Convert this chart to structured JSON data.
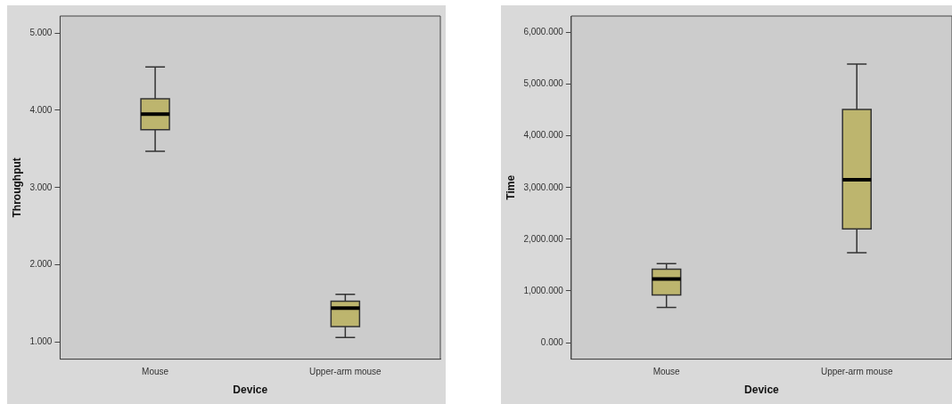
{
  "chart_data": [
    {
      "type": "box",
      "xlabel": "Device",
      "ylabel": "Throughput",
      "categories": [
        "Mouse",
        "Upper-arm mouse"
      ],
      "color": "#bdb56e",
      "boxes": [
        {
          "low": 3.47,
          "q1": 3.75,
          "median": 3.95,
          "q3": 4.15,
          "high": 4.56
        },
        {
          "low": 1.06,
          "q1": 1.2,
          "median": 1.44,
          "q3": 1.53,
          "high": 1.62
        }
      ],
      "ylim": [
        0.78,
        5.22
      ],
      "yticks": [
        {
          "value": 1,
          "label": "1.000"
        },
        {
          "value": 2,
          "label": "2.000"
        },
        {
          "value": 3,
          "label": "3.000"
        },
        {
          "value": 4,
          "label": "4.000"
        },
        {
          "value": 5,
          "label": "5.000"
        }
      ],
      "grid": false
    },
    {
      "type": "box",
      "xlabel": "Device",
      "ylabel": "Time",
      "categories": [
        "Mouse",
        "Upper-arm mouse"
      ],
      "color": "#bdb56e",
      "boxes": [
        {
          "low": 680,
          "q1": 920,
          "median": 1230,
          "q3": 1420,
          "high": 1530
        },
        {
          "low": 1740,
          "q1": 2200,
          "median": 3150,
          "q3": 4510,
          "high": 5390
        }
      ],
      "ylim": [
        -320,
        6320
      ],
      "yticks": [
        {
          "value": 0,
          "label": "0.000"
        },
        {
          "value": 1000,
          "label": "1,000.000"
        },
        {
          "value": 2000,
          "label": "2,000.000"
        },
        {
          "value": 3000,
          "label": "3,000.000"
        },
        {
          "value": 4000,
          "label": "4,000.000"
        },
        {
          "value": 5000,
          "label": "5,000.000"
        },
        {
          "value": 6000,
          "label": "6,000.000"
        }
      ],
      "grid": false
    }
  ]
}
